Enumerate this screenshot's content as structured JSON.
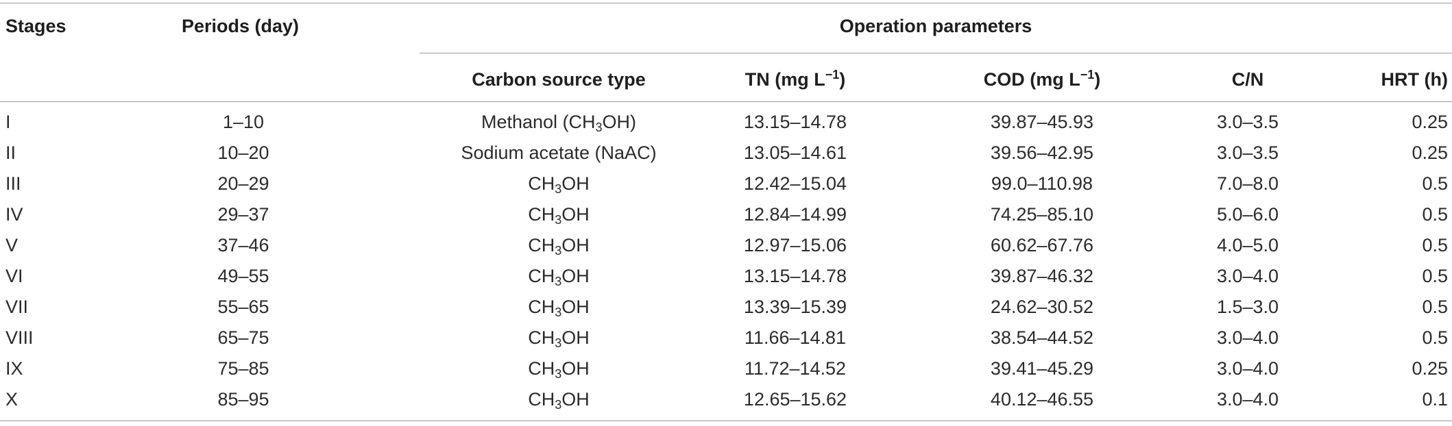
{
  "table": {
    "headers": {
      "stages": "Stages",
      "periods": "Periods (day)",
      "operation": "Operation parameters",
      "carbon": "Carbon source type",
      "tn_prefix": "TN (mg L",
      "cod_prefix": "COD (mg L",
      "unit_exp": "−1",
      "unit_close": ")",
      "cn": "C/N",
      "hrt": "HRT (h)"
    },
    "rows": [
      {
        "stage": "I",
        "period": "1–10",
        "carbon_pre": "Methanol (CH",
        "carbon_sub": "3",
        "carbon_post": "OH)",
        "tn": "13.15–14.78",
        "cod": "39.87–45.93",
        "cn": "3.0–3.5",
        "hrt": "0.25"
      },
      {
        "stage": "II",
        "period": "10–20",
        "carbon_pre": "Sodium acetate (NaAC)",
        "carbon_sub": "",
        "carbon_post": "",
        "tn": "13.05–14.61",
        "cod": "39.56–42.95",
        "cn": "3.0–3.5",
        "hrt": "0.25"
      },
      {
        "stage": "III",
        "period": "20–29",
        "carbon_pre": "CH",
        "carbon_sub": "3",
        "carbon_post": "OH",
        "tn": "12.42–15.04",
        "cod": "99.0–110.98",
        "cn": "7.0–8.0",
        "hrt": "0.5"
      },
      {
        "stage": "IV",
        "period": "29–37",
        "carbon_pre": "CH",
        "carbon_sub": "3",
        "carbon_post": "OH",
        "tn": "12.84–14.99",
        "cod": "74.25–85.10",
        "cn": "5.0–6.0",
        "hrt": "0.5"
      },
      {
        "stage": "V",
        "period": "37–46",
        "carbon_pre": "CH",
        "carbon_sub": "3",
        "carbon_post": "OH",
        "tn": "12.97–15.06",
        "cod": "60.62–67.76",
        "cn": "4.0–5.0",
        "hrt": "0.5"
      },
      {
        "stage": "VI",
        "period": "49–55",
        "carbon_pre": "CH",
        "carbon_sub": "3",
        "carbon_post": "OH",
        "tn": "13.15–14.78",
        "cod": "39.87–46.32",
        "cn": "3.0–4.0",
        "hrt": "0.5"
      },
      {
        "stage": "VII",
        "period": "55–65",
        "carbon_pre": "CH",
        "carbon_sub": "3",
        "carbon_post": "OH",
        "tn": "13.39–15.39",
        "cod": "24.62–30.52",
        "cn": "1.5–3.0",
        "hrt": "0.5"
      },
      {
        "stage": "VIII",
        "period": "65–75",
        "carbon_pre": "CH",
        "carbon_sub": "3",
        "carbon_post": "OH",
        "tn": "11.66–14.81",
        "cod": "38.54–44.52",
        "cn": "3.0–4.0",
        "hrt": "0.5"
      },
      {
        "stage": "IX",
        "period": "75–85",
        "carbon_pre": "CH",
        "carbon_sub": "3",
        "carbon_post": "OH",
        "tn": "11.72–14.52",
        "cod": "39.41–45.29",
        "cn": "3.0–4.0",
        "hrt": "0.25"
      },
      {
        "stage": "X",
        "period": "85–95",
        "carbon_pre": "CH",
        "carbon_sub": "3",
        "carbon_post": "OH",
        "tn": "12.65–15.62",
        "cod": "40.12–46.55",
        "cn": "3.0–4.0",
        "hrt": "0.1"
      }
    ]
  }
}
